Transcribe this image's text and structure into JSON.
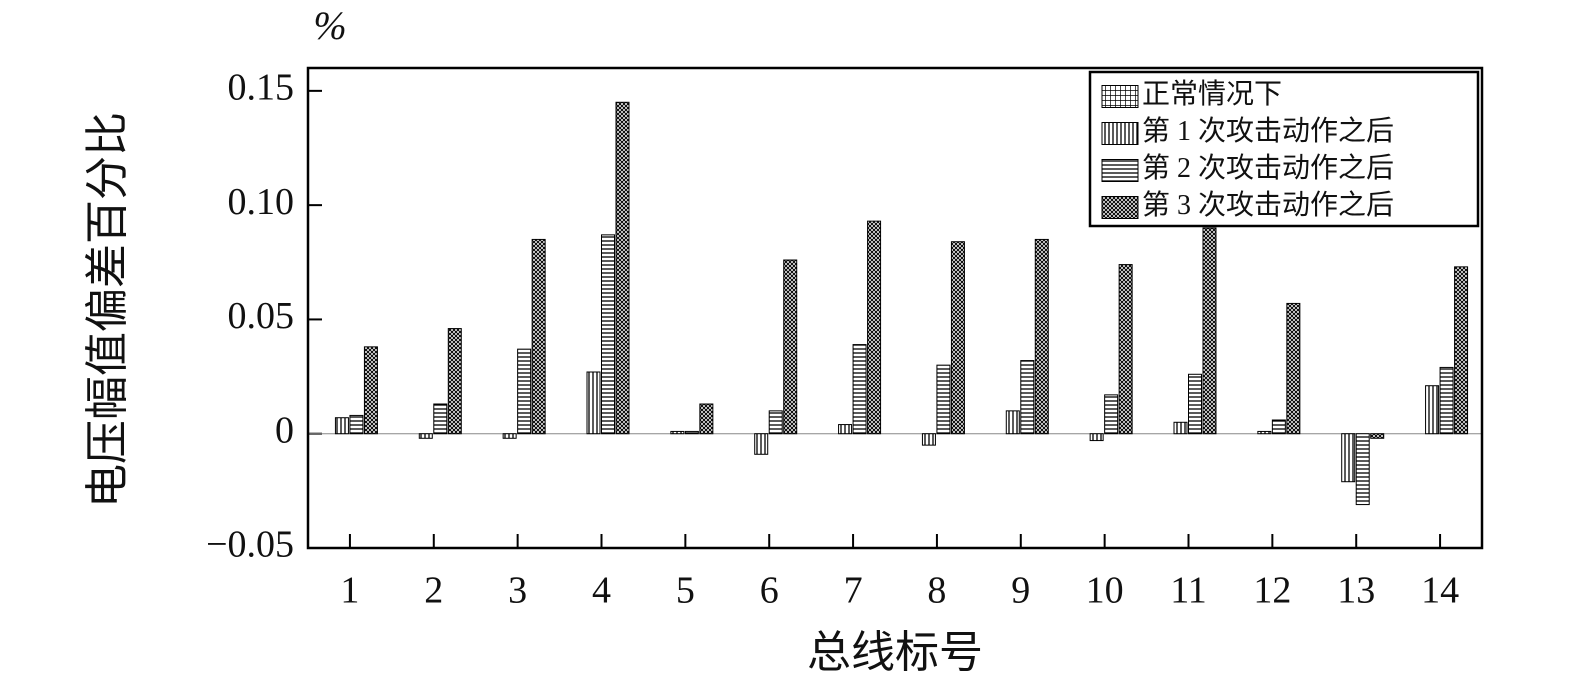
{
  "chart_data": {
    "type": "bar",
    "unit_label": "%",
    "y_label": "电压幅值偏差百分比",
    "x_label": "总线标号",
    "categories": [
      "1",
      "2",
      "3",
      "4",
      "5",
      "6",
      "7",
      "8",
      "9",
      "10",
      "11",
      "12",
      "13",
      "14"
    ],
    "series": [
      {
        "name": "正常情况下",
        "color": "#000000",
        "pattern": "grid",
        "values": [
          0,
          0,
          0,
          0,
          0,
          0,
          0,
          0,
          0,
          0,
          0,
          0,
          0,
          0
        ]
      },
      {
        "name": "第 1 次攻击动作之后",
        "color": "#000000",
        "pattern": "vertical",
        "values": [
          0.007,
          -0.002,
          -0.002,
          0.027,
          0.001,
          -0.009,
          0.004,
          -0.005,
          0.01,
          -0.003,
          0.005,
          0.001,
          -0.021,
          0.021
        ]
      },
      {
        "name": "第 2 次攻击动作之后",
        "color": "#000000",
        "pattern": "horizontal",
        "values": [
          0.008,
          0.013,
          0.037,
          0.087,
          0.001,
          0.01,
          0.039,
          0.03,
          0.032,
          0.017,
          0.026,
          0.006,
          -0.031,
          0.029
        ]
      },
      {
        "name": "第 3 次攻击动作之后",
        "color": "#000000",
        "pattern": "crosshatch",
        "values": [
          0.038,
          0.046,
          0.085,
          0.145,
          0.013,
          0.076,
          0.093,
          0.084,
          0.085,
          0.074,
          0.09,
          0.057,
          -0.002,
          0.073
        ]
      }
    ],
    "ylim": [
      -0.05,
      0.16
    ],
    "yticks": [
      {
        "value": -0.05,
        "label": "−0.05"
      },
      0,
      0.05,
      {
        "value": 0.1,
        "label": "0.10"
      },
      0.15
    ],
    "legend": "upper right",
    "grid": false
  }
}
